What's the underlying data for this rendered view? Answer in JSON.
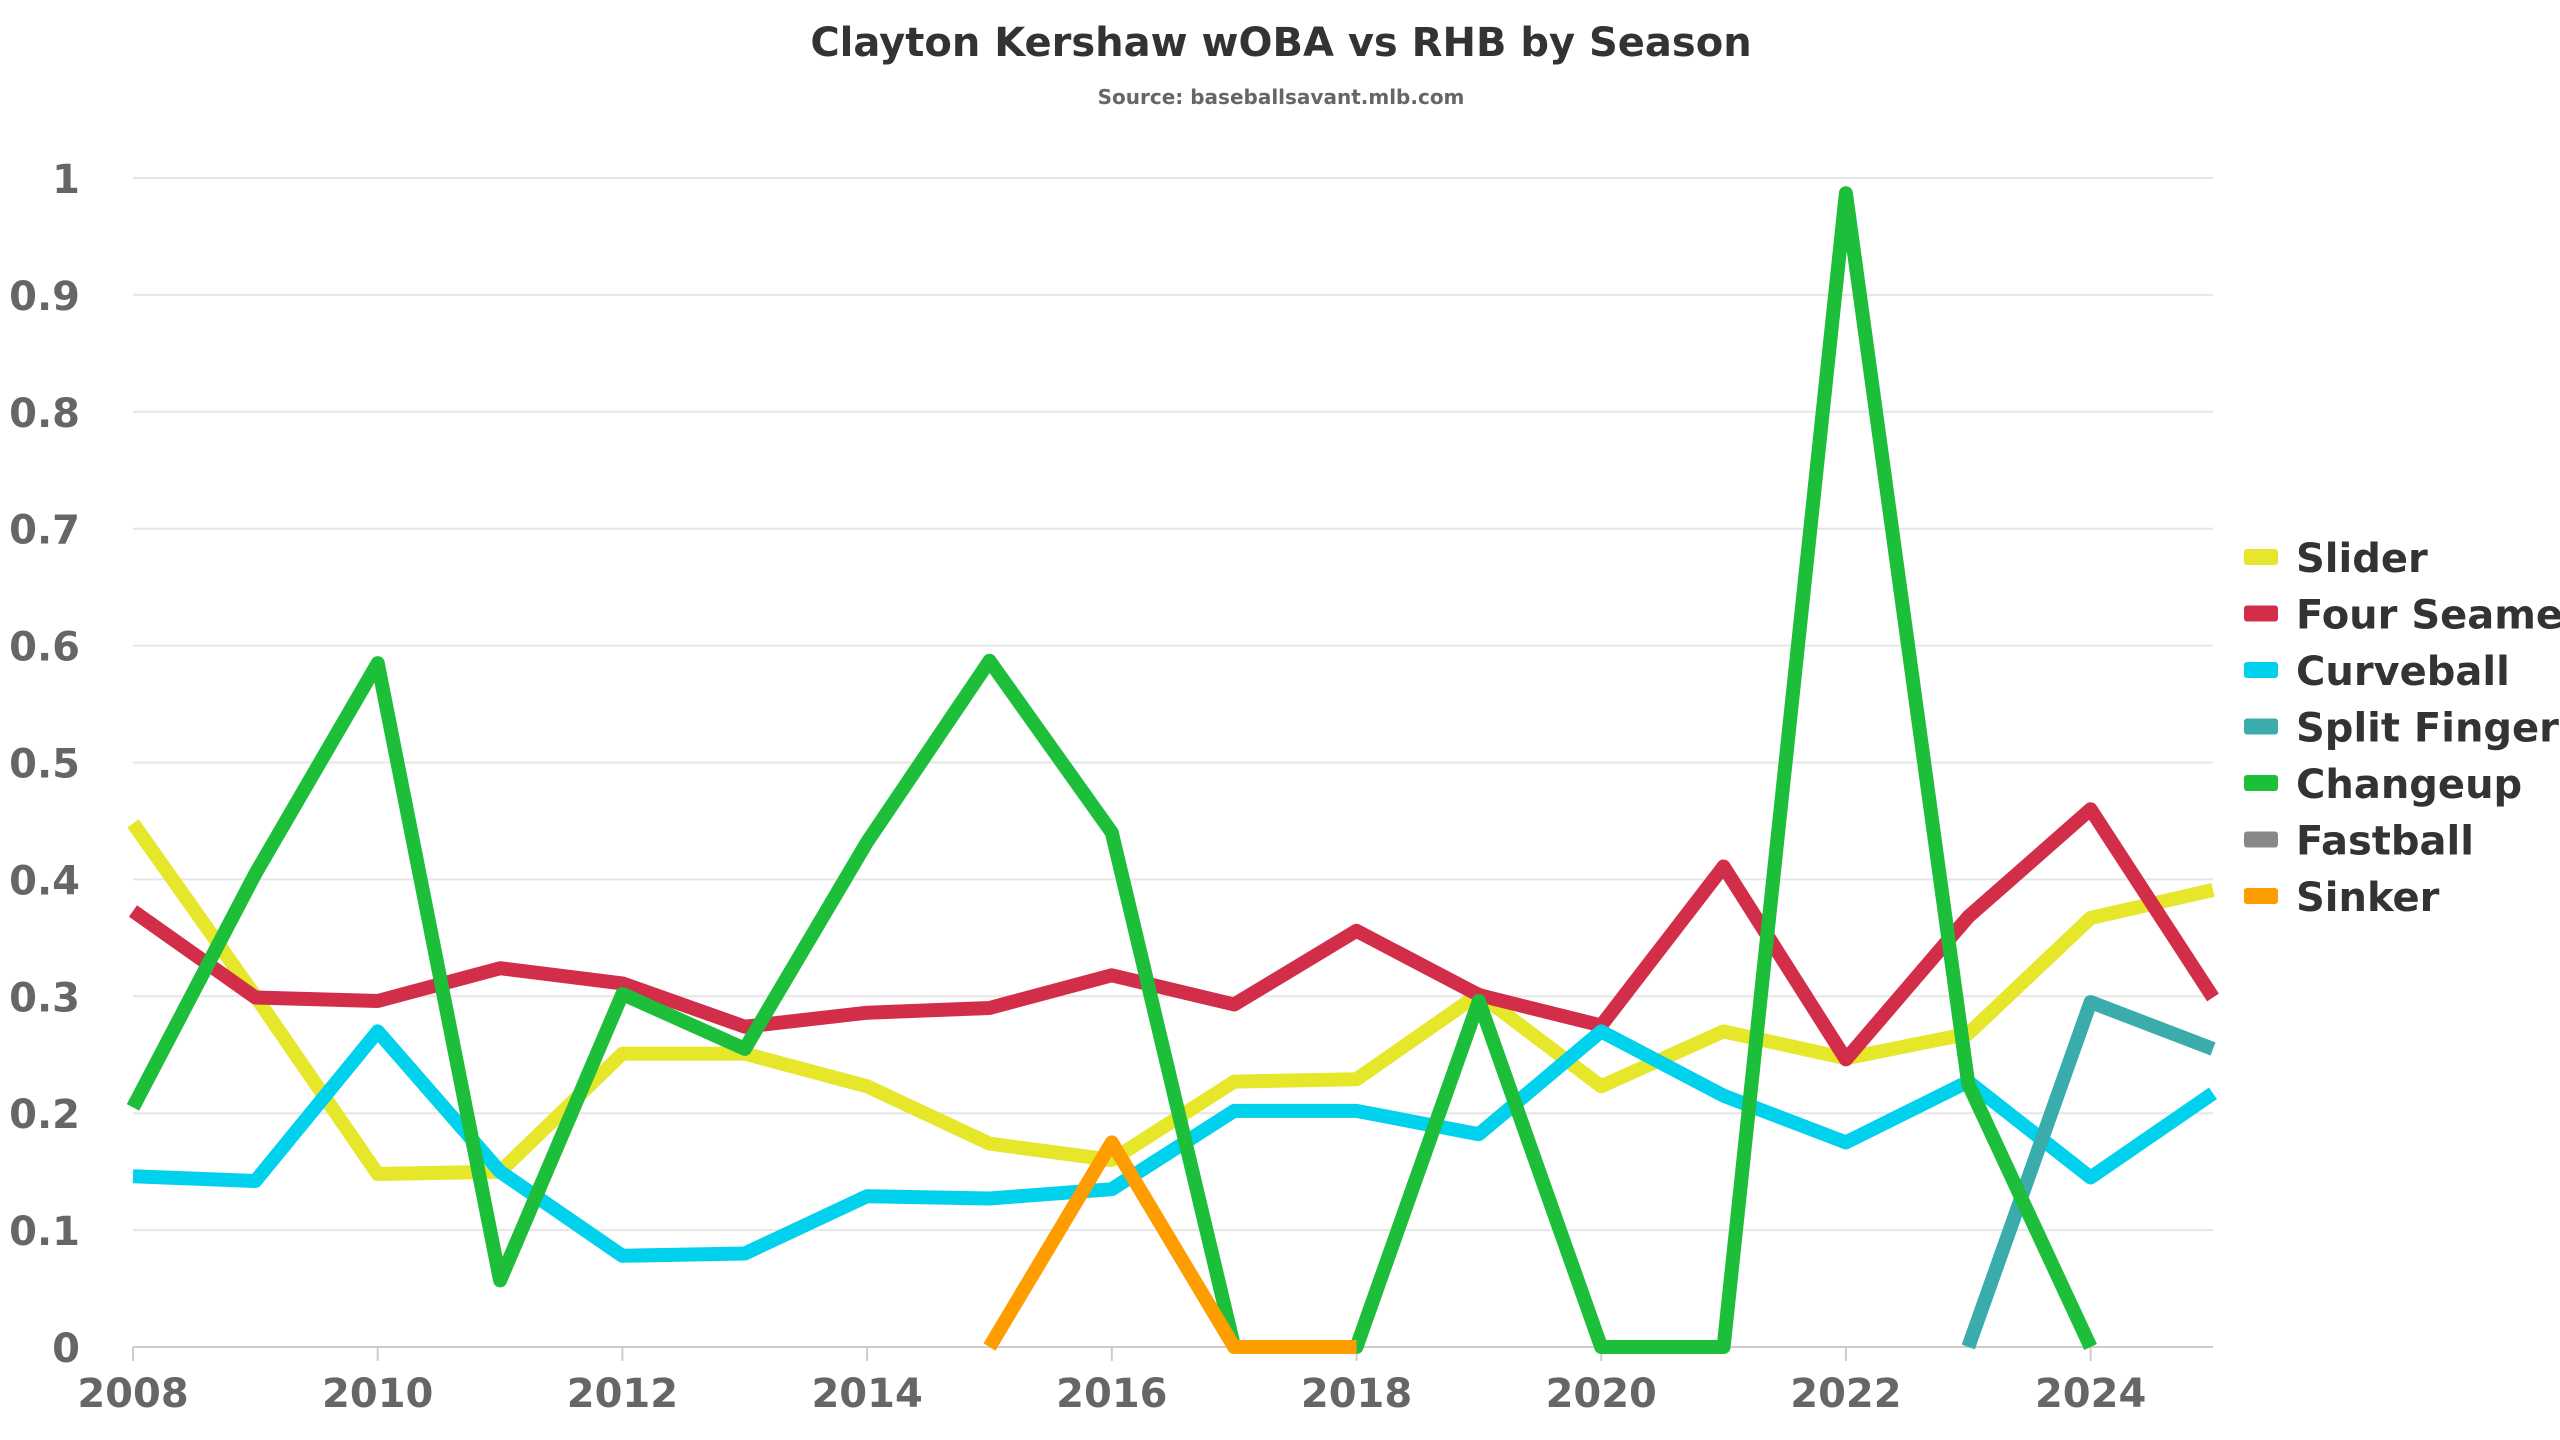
{
  "chart_data": {
    "type": "line",
    "title": "Clayton Kershaw wOBA vs RHB by Season",
    "subtitle": "Source: baseballsavant.mlb.com",
    "xlabel": "",
    "ylabel": "",
    "xlim": [
      2008,
      2025
    ],
    "ylim": [
      0,
      1
    ],
    "x_ticks": [
      "2008",
      "2010",
      "2012",
      "2014",
      "2016",
      "2018",
      "2020",
      "2022",
      "2024"
    ],
    "y_ticks": [
      "0",
      "0.1",
      "0.2",
      "0.3",
      "0.4",
      "0.5",
      "0.6",
      "0.7",
      "0.8",
      "0.9",
      "1"
    ],
    "grid": true,
    "legend_position": "right",
    "series": [
      {
        "name": "Slider",
        "color": "#e6e62a",
        "points": [
          [
            2008,
            0.448
          ],
          [
            2009,
            0.3
          ],
          [
            2010,
            0.148
          ],
          [
            2011,
            0.15
          ],
          [
            2012,
            0.251
          ],
          [
            2013,
            0.251
          ],
          [
            2014,
            0.223
          ],
          [
            2015,
            0.174
          ],
          [
            2016,
            0.16
          ],
          [
            2017,
            0.227
          ],
          [
            2018,
            0.229
          ],
          [
            2019,
            0.302
          ],
          [
            2020,
            0.223
          ],
          [
            2021,
            0.27
          ],
          [
            2022,
            0.247
          ],
          [
            2023,
            0.268
          ],
          [
            2024,
            0.367
          ],
          [
            2025,
            0.391
          ]
        ]
      },
      {
        "name": "Four Seamer",
        "color": "#d22d49",
        "points": [
          [
            2008,
            0.373
          ],
          [
            2009,
            0.299
          ],
          [
            2010,
            0.296
          ],
          [
            2011,
            0.324
          ],
          [
            2012,
            0.311
          ],
          [
            2013,
            0.274
          ],
          [
            2014,
            0.286
          ],
          [
            2015,
            0.29
          ],
          [
            2016,
            0.318
          ],
          [
            2017,
            0.293
          ],
          [
            2018,
            0.356
          ],
          [
            2019,
            0.301
          ],
          [
            2020,
            0.275
          ],
          [
            2021,
            0.411
          ],
          [
            2022,
            0.246
          ],
          [
            2023,
            0.368
          ],
          [
            2024,
            0.46
          ],
          [
            2025,
            0.299
          ]
        ]
      },
      {
        "name": "Curveball",
        "color": "#00d1ed",
        "points": [
          [
            2008,
            0.146
          ],
          [
            2009,
            0.142
          ],
          [
            2010,
            0.27
          ],
          [
            2011,
            0.15
          ],
          [
            2012,
            0.078
          ],
          [
            2013,
            0.08
          ],
          [
            2014,
            0.129
          ],
          [
            2015,
            0.127
          ],
          [
            2016,
            0.135
          ],
          [
            2017,
            0.202
          ],
          [
            2018,
            0.202
          ],
          [
            2019,
            0.182
          ],
          [
            2020,
            0.27
          ],
          [
            2021,
            0.215
          ],
          [
            2022,
            0.175
          ],
          [
            2023,
            0.227
          ],
          [
            2024,
            0.145
          ],
          [
            2025,
            0.217
          ]
        ]
      },
      {
        "name": "Split Finger",
        "color": "#3bacac",
        "points": [
          [
            2023,
            0.0
          ],
          [
            2024,
            0.295
          ],
          [
            2025,
            0.255
          ]
        ]
      },
      {
        "name": "Changeup",
        "color": "#1dbe3a",
        "points": [
          [
            2008,
            0.205
          ],
          [
            2009,
            0.405
          ],
          [
            2010,
            0.585
          ],
          [
            2011,
            0.057
          ],
          [
            2012,
            0.302
          ],
          [
            2013,
            0.255
          ],
          [
            2014,
            0.432
          ],
          [
            2015,
            0.587
          ],
          [
            2016,
            0.44
          ],
          [
            2017,
            0.0
          ],
          [
            2018,
            0.0
          ],
          [
            2019,
            0.296
          ],
          [
            2020,
            0.0
          ],
          [
            2021,
            0.0
          ],
          [
            2022,
            0.987
          ],
          [
            2023,
            0.225
          ],
          [
            2024,
            0.0
          ]
        ]
      },
      {
        "name": "Fastball",
        "color": "#888888",
        "points": []
      },
      {
        "name": "Sinker",
        "color": "#fe9d00",
        "points": [
          [
            2015,
            0.0
          ],
          [
            2016,
            0.175
          ],
          [
            2017,
            0.0
          ],
          [
            2018,
            0.0
          ]
        ]
      }
    ]
  }
}
